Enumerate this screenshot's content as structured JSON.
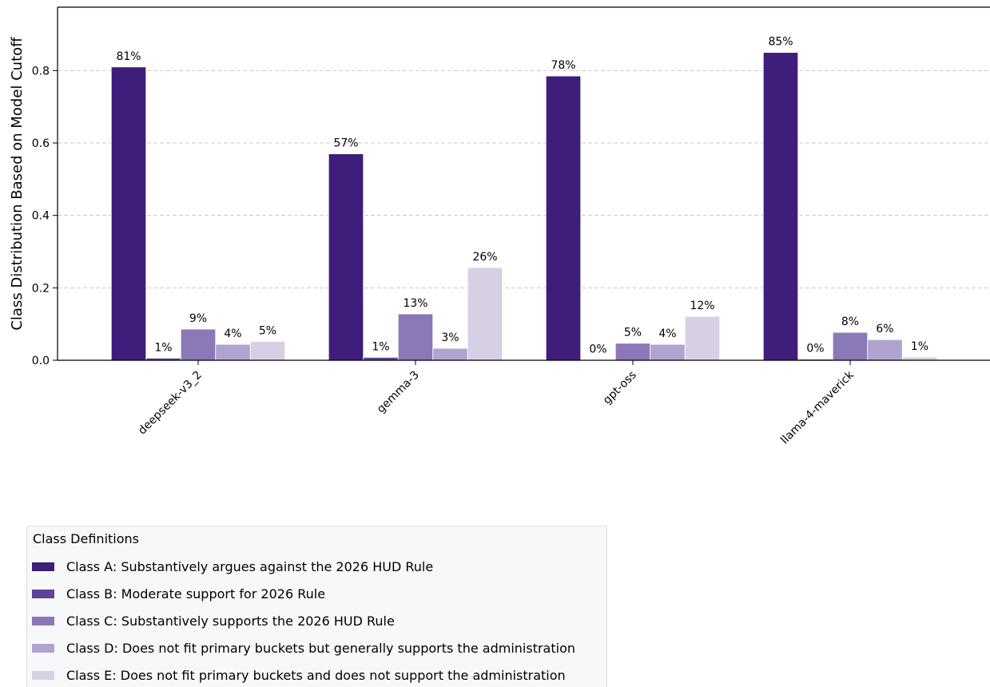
{
  "chart_data": {
    "type": "bar",
    "ylabel": "Class Distribution Based on Model Cutoff",
    "xlabel": "",
    "categories": [
      "deepseek-v3_2",
      "gemma-3",
      "gpt-oss",
      "llama-4-maverick"
    ],
    "ylim": [
      0,
      0.975
    ],
    "yticks": [
      "0.0",
      "0.2",
      "0.4",
      "0.6",
      "0.8"
    ],
    "grid": "horizontal dashed",
    "series": [
      {
        "name": "Class A: Substantively argues against the 2026 HUD Rule",
        "color": "#3f1d7a",
        "values": [
          0.81,
          0.57,
          0.785,
          0.85
        ],
        "labels": [
          "81%",
          "57%",
          "78%",
          "85%"
        ]
      },
      {
        "name": "Class B: Moderate support for 2026 Rule",
        "color": "#5e4496",
        "values": [
          0.006,
          0.008,
          0.001,
          0.003
        ],
        "labels": [
          "1%",
          "1%",
          "0%",
          "0%"
        ]
      },
      {
        "name": "Class C: Substantively supports the 2026 HUD Rule",
        "color": "#8b78b6",
        "values": [
          0.086,
          0.128,
          0.047,
          0.077
        ],
        "labels": [
          "9%",
          "13%",
          "5%",
          "8%"
        ]
      },
      {
        "name": "Class D: Does not fit primary buckets but generally supports the administration",
        "color": "#b1a3cf",
        "values": [
          0.044,
          0.033,
          0.044,
          0.057
        ],
        "labels": [
          "4%",
          "3%",
          "4%",
          "6%"
        ]
      },
      {
        "name": "Class E: Does not fit primary buckets and does not support the administration",
        "color": "#d7d0e5",
        "values": [
          0.052,
          0.256,
          0.121,
          0.009
        ],
        "labels": [
          "5%",
          "26%",
          "12%",
          "1%"
        ]
      }
    ],
    "legend": {
      "title": "Class Definitions",
      "placement": "bottom-left"
    }
  }
}
